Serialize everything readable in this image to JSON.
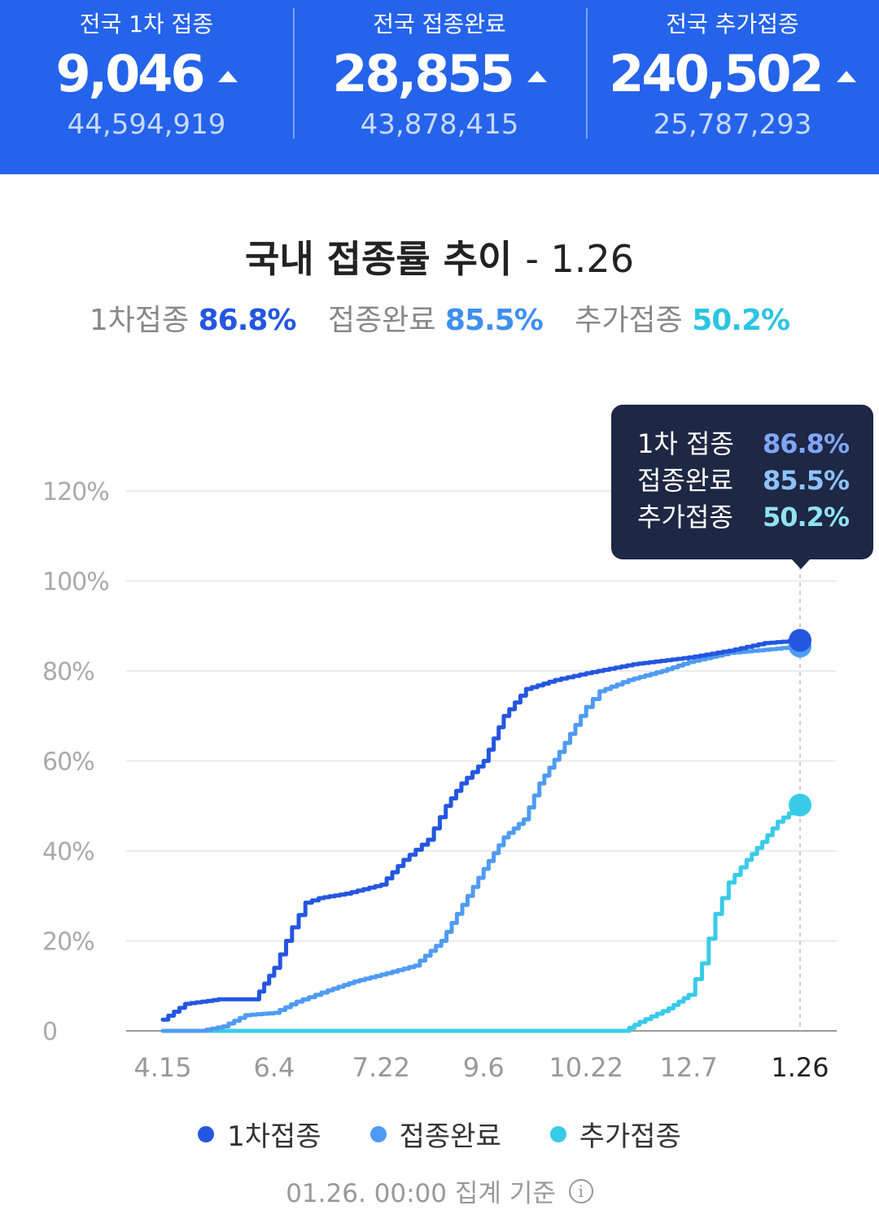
{
  "header": {
    "stats": [
      {
        "label": "전국 1차 접종",
        "daily": "9,046",
        "total": "44,594,919"
      },
      {
        "label": "전국 접종완료",
        "daily": "28,855",
        "total": "43,878,415"
      },
      {
        "label": "전국 추가접종",
        "daily": "240,502",
        "total": "25,787,293"
      }
    ]
  },
  "summary": {
    "title": "국내 접종률 추이",
    "date": "- 1.26",
    "rates": [
      {
        "label": "1차접종",
        "value": "86.8%"
      },
      {
        "label": "접종완료",
        "value": "85.5%"
      },
      {
        "label": "추가접종",
        "value": "50.2%"
      }
    ]
  },
  "tooltip": {
    "rows": [
      {
        "label": "1차 접종",
        "value": "86.8%"
      },
      {
        "label": "접종완료",
        "value": "85.5%"
      },
      {
        "label": "추가접종",
        "value": "50.2%"
      }
    ]
  },
  "legend": [
    "1차접종",
    "접종완료",
    "추가접종"
  ],
  "footnote": "01.26. 00:00 집계 기준",
  "colors": {
    "header_bg": "#2563eb",
    "first": "#2456e0",
    "complete": "#4f9bf3",
    "booster": "#38cbe8",
    "tooltip_bg": "#1e2743"
  },
  "chart_data": {
    "type": "line",
    "ylim": [
      0,
      120
    ],
    "y_ticks": [
      0,
      20,
      40,
      60,
      80,
      100,
      120
    ],
    "y_tick_labels": [
      "0",
      "20%",
      "40%",
      "60%",
      "80%",
      "100%",
      "120%"
    ],
    "x_range": [
      "2021-04-15",
      "2022-01-26"
    ],
    "x_ticks": [
      {
        "date": "2021-04-15",
        "label": "4.15"
      },
      {
        "date": "2021-06-04",
        "label": "6.4"
      },
      {
        "date": "2021-07-22",
        "label": "7.22"
      },
      {
        "date": "2021-09-06",
        "label": "9.6"
      },
      {
        "date": "2021-10-22",
        "label": "10.22"
      },
      {
        "date": "2021-12-07",
        "label": "12.7"
      },
      {
        "date": "2022-01-26",
        "label": "1.26"
      }
    ],
    "highlight_date": "2022-01-26",
    "grid": true,
    "legend_position": "bottom",
    "series": [
      {
        "name": "1차접종",
        "color": "#2456e0",
        "points": [
          [
            "2021-04-15",
            2.5
          ],
          [
            "2021-04-25",
            6
          ],
          [
            "2021-05-10",
            7
          ],
          [
            "2021-05-26",
            7
          ],
          [
            "2021-06-04",
            14
          ],
          [
            "2021-06-12",
            23
          ],
          [
            "2021-06-18",
            28.5
          ],
          [
            "2021-06-24",
            29.5
          ],
          [
            "2021-07-06",
            30.5
          ],
          [
            "2021-07-22",
            32.5
          ],
          [
            "2021-08-01",
            38
          ],
          [
            "2021-08-12",
            42.5
          ],
          [
            "2021-08-20",
            50
          ],
          [
            "2021-08-27",
            55
          ],
          [
            "2021-09-06",
            60
          ],
          [
            "2021-09-15",
            70
          ],
          [
            "2021-09-25",
            76
          ],
          [
            "2021-10-08",
            78
          ],
          [
            "2021-10-22",
            79.5
          ],
          [
            "2021-11-12",
            81.5
          ],
          [
            "2021-12-07",
            83
          ],
          [
            "2021-12-25",
            84.5
          ],
          [
            "2022-01-10",
            86.2
          ],
          [
            "2022-01-26",
            86.8
          ]
        ]
      },
      {
        "name": "접종완료",
        "color": "#4f9bf3",
        "points": [
          [
            "2021-04-15",
            0
          ],
          [
            "2021-05-02",
            0
          ],
          [
            "2021-05-12",
            1
          ],
          [
            "2021-05-22",
            3.5
          ],
          [
            "2021-06-04",
            4
          ],
          [
            "2021-06-14",
            6.5
          ],
          [
            "2021-06-28",
            9
          ],
          [
            "2021-07-10",
            11
          ],
          [
            "2021-07-22",
            12.5
          ],
          [
            "2021-08-06",
            14.5
          ],
          [
            "2021-08-18",
            20
          ],
          [
            "2021-08-25",
            26
          ],
          [
            "2021-09-06",
            36
          ],
          [
            "2021-09-15",
            43
          ],
          [
            "2021-09-24",
            47
          ],
          [
            "2021-10-01",
            55
          ],
          [
            "2021-10-10",
            62
          ],
          [
            "2021-10-22",
            72
          ],
          [
            "2021-10-28",
            75.5
          ],
          [
            "2021-11-10",
            78
          ],
          [
            "2021-11-25",
            80
          ],
          [
            "2021-12-07",
            82
          ],
          [
            "2021-12-25",
            84
          ],
          [
            "2022-01-10",
            84.7
          ],
          [
            "2022-01-26",
            85.5
          ]
        ]
      },
      {
        "name": "추가접종",
        "color": "#38cbe8",
        "points": [
          [
            "2021-04-15",
            0
          ],
          [
            "2021-10-20",
            0
          ],
          [
            "2021-11-08",
            0
          ],
          [
            "2021-11-15",
            2
          ],
          [
            "2021-11-28",
            5
          ],
          [
            "2021-12-07",
            8
          ],
          [
            "2021-12-13",
            15
          ],
          [
            "2021-12-19",
            26
          ],
          [
            "2021-12-25",
            33
          ],
          [
            "2022-01-02",
            38
          ],
          [
            "2022-01-09",
            42
          ],
          [
            "2022-01-16",
            46.5
          ],
          [
            "2022-01-26",
            50.2
          ]
        ]
      }
    ]
  }
}
